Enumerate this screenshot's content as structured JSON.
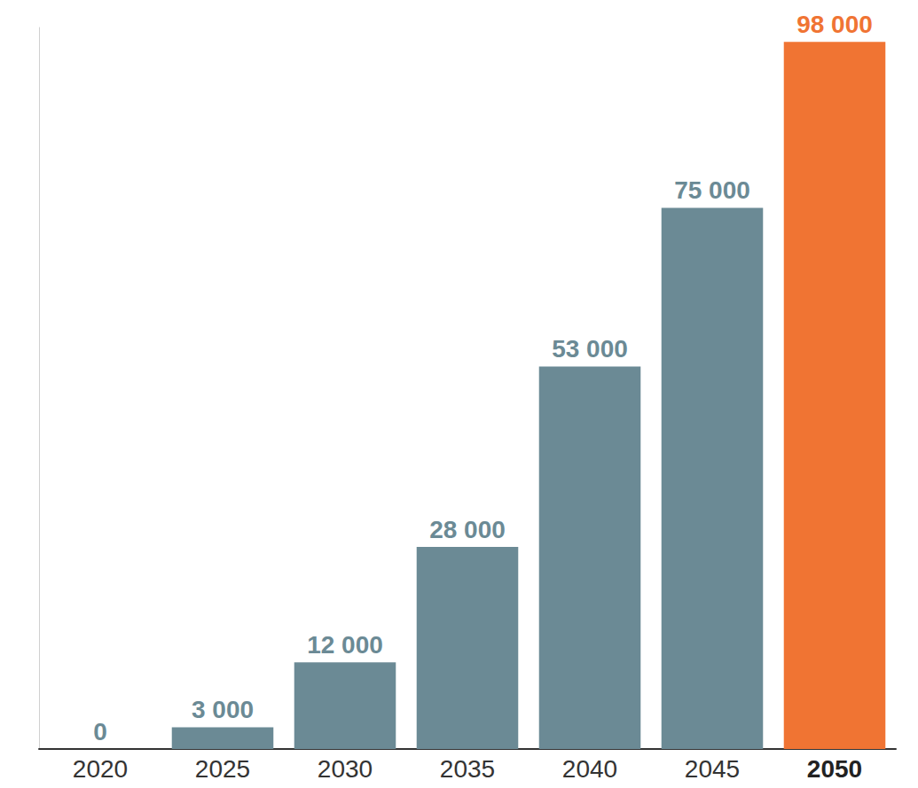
{
  "chart_data": {
    "type": "bar",
    "categories": [
      "2020",
      "2025",
      "2030",
      "2035",
      "2040",
      "2045",
      "2050"
    ],
    "values": [
      0,
      3000,
      12000,
      28000,
      53000,
      75000,
      98000
    ],
    "value_labels": [
      "0",
      "3 000",
      "12 000",
      "28 000",
      "53 000",
      "75 000",
      "98 000"
    ],
    "colors": [
      "#6b8a95",
      "#6b8a95",
      "#6b8a95",
      "#6b8a95",
      "#6b8a95",
      "#6b8a95",
      "#f07433"
    ],
    "ylim": [
      0,
      100000
    ],
    "grid": false,
    "data_labels": true,
    "tick_labels": "x"
  }
}
